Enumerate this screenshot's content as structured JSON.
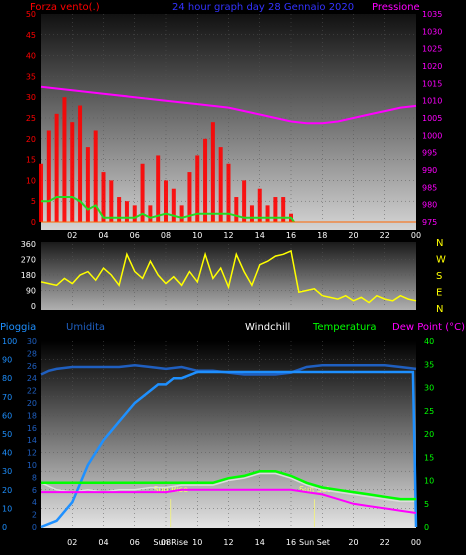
{
  "header": {
    "left": "Forza vento(.)",
    "center": "24 hour graph day 28 Gennaio 2020",
    "right": "Pressione"
  },
  "colors": {
    "wind_speed": "#ff0000",
    "wind_avg": "#22dd22",
    "pressure": "#ff00ff",
    "direction": "#ffff00",
    "humidity": "#1f5fc0",
    "rain": "#1e90ff",
    "temperature": "#00ff00",
    "dew_point": "#ff00ff",
    "windchill": "#dddddd",
    "rain_label": "#1e90ff",
    "humidity_label": "#1f5fc0"
  },
  "chart_data": [
    {
      "type": "line",
      "name": "wind-pressure",
      "x_ticks": [
        "02",
        "04",
        "06",
        "08",
        "10",
        "12",
        "14",
        "16",
        "18",
        "20",
        "22",
        "00"
      ],
      "wind_axis": {
        "ticks": [
          0,
          5,
          10,
          15,
          20,
          25,
          30,
          35,
          40,
          45,
          50
        ],
        "ylim": [
          0,
          50
        ]
      },
      "pressure_axis": {
        "ticks": [
          975,
          980,
          985,
          990,
          995,
          1000,
          1005,
          1010,
          1015,
          1020,
          1025,
          1030,
          1035
        ],
        "ylim": [
          975,
          1035
        ]
      },
      "series": [
        {
          "name": "Pressione",
          "x": [
            0,
            1,
            2,
            4,
            6,
            8,
            10,
            12,
            14,
            16,
            17,
            18,
            19,
            20,
            21,
            22,
            23,
            24
          ],
          "values": [
            1014,
            1013.5,
            1013,
            1012,
            1011,
            1010,
            1009,
            1008,
            1006,
            1004,
            1003.5,
            1003.5,
            1004,
            1005,
            1006,
            1007,
            1008,
            1008.5
          ]
        },
        {
          "name": "wind_gust",
          "x": [
            0,
            0.5,
            1,
            1.5,
            2,
            2.5,
            3,
            3.5,
            4,
            4.5,
            5,
            5.5,
            6,
            6.5,
            7,
            7.5,
            8,
            8.5,
            9,
            9.5,
            10,
            10.5,
            11,
            11.5,
            12,
            12.5,
            13,
            13.5,
            14,
            14.5,
            15,
            15.5,
            16,
            16.2
          ],
          "values": [
            14,
            22,
            26,
            30,
            24,
            28,
            18,
            22,
            12,
            10,
            6,
            5,
            4,
            14,
            4,
            16,
            10,
            8,
            4,
            12,
            16,
            20,
            24,
            18,
            14,
            6,
            10,
            4,
            8,
            4,
            6,
            6,
            2,
            0
          ]
        },
        {
          "name": "wind_avg",
          "x": [
            0,
            0.5,
            1,
            1.5,
            2,
            2.5,
            3,
            3.5,
            4,
            5,
            6,
            6.5,
            7,
            8,
            9,
            10,
            11,
            12,
            13,
            14,
            15,
            16,
            16.2
          ],
          "values": [
            5,
            5,
            6,
            6,
            6,
            5,
            3,
            4,
            1,
            1,
            1,
            2,
            1,
            2,
            1,
            2,
            2,
            2,
            1,
            1,
            1,
            1,
            0
          ]
        }
      ]
    },
    {
      "type": "scatter",
      "name": "wind-direction",
      "x_ticks": [
        "02",
        "04",
        "06",
        "08",
        "10",
        "12",
        "14",
        "16",
        "18",
        "20",
        "22",
        "00"
      ],
      "left_axis": {
        "ticks": [
          0,
          90,
          180,
          270,
          360
        ],
        "ylim": [
          0,
          360
        ]
      },
      "right_labels": [
        "N",
        "W",
        "S",
        "E",
        "N"
      ],
      "series": [
        {
          "name": "direction",
          "x": [
            0,
            0.5,
            1,
            1.5,
            2,
            2.5,
            3,
            3.5,
            4,
            4.5,
            5,
            5.5,
            6,
            6.5,
            7,
            7.5,
            8,
            8.5,
            9,
            9.5,
            10,
            10.5,
            11,
            11.5,
            12,
            12.5,
            13,
            13.5,
            14,
            14.5,
            15,
            15.5,
            16,
            16.5,
            17,
            17.5,
            18,
            18.5,
            19,
            19.5,
            20,
            20.5,
            21,
            21.5,
            22,
            22.5,
            23,
            23.5,
            24
          ],
          "values": [
            140,
            130,
            120,
            160,
            130,
            180,
            200,
            150,
            220,
            180,
            120,
            300,
            200,
            160,
            260,
            180,
            130,
            170,
            120,
            200,
            140,
            300,
            160,
            220,
            110,
            300,
            200,
            120,
            240,
            260,
            290,
            300,
            320,
            80,
            90,
            100,
            60,
            50,
            40,
            60,
            30,
            50,
            20,
            60,
            40,
            30,
            60,
            40,
            30
          ]
        }
      ]
    },
    {
      "type": "line",
      "name": "rain-humidity-temperature",
      "x_ticks": [
        "02",
        "04",
        "06",
        "08",
        "Sun Rise",
        "10",
        "12",
        "14",
        "16",
        "Sun Set",
        "20",
        "22",
        "00"
      ],
      "header": [
        "Pioggia",
        "Umidita",
        "Windchill",
        "Temperatura",
        "Dew Point (°C)"
      ],
      "rain_axis": {
        "ticks": [
          0,
          10,
          20,
          30,
          40,
          50,
          60,
          70,
          80,
          90,
          100
        ],
        "ylim": [
          0,
          100
        ]
      },
      "humidity_axis": {
        "ticks": [
          0,
          2,
          4,
          6,
          8,
          10,
          12,
          14,
          16,
          18,
          20,
          22,
          24,
          26,
          28,
          30
        ],
        "ylim": [
          0,
          30
        ]
      },
      "temp_axis": {
        "ticks": [
          0,
          5,
          10,
          15,
          20,
          25,
          30,
          35,
          40
        ],
        "ylim": [
          0,
          40
        ]
      },
      "annotations": [
        {
          "text": "Sun Rise",
          "x": 8.3
        },
        {
          "text": "Sun Set",
          "x": 17.5
        }
      ],
      "series": [
        {
          "name": "rain",
          "x": [
            0,
            1,
            2,
            3,
            4,
            5,
            6,
            7,
            7.5,
            8,
            8.5,
            9,
            10,
            11,
            12,
            13,
            14,
            15,
            16,
            17,
            18,
            19,
            20,
            21,
            22,
            23,
            23.8,
            24
          ],
          "values": [
            0,
            1,
            4,
            10,
            14,
            17,
            20,
            22,
            23,
            23,
            24,
            24,
            25,
            25,
            25,
            25,
            25,
            25,
            25,
            25,
            25,
            25,
            25,
            25,
            25,
            25,
            25,
            0
          ]
        },
        {
          "name": "humidity",
          "x": [
            0,
            0.5,
            1,
            2,
            3,
            4,
            5,
            6,
            7,
            8,
            9,
            10,
            11,
            12,
            13,
            14,
            15,
            16,
            17,
            18,
            19,
            20,
            21,
            22,
            23,
            24
          ],
          "values": [
            82,
            84,
            85,
            86,
            86,
            86,
            86,
            87,
            86,
            85,
            86,
            84,
            84,
            83,
            82,
            82,
            82,
            83,
            86,
            87,
            87,
            87,
            87,
            87,
            86,
            85
          ]
        },
        {
          "name": "Temperatura",
          "x": [
            0,
            1,
            2,
            3,
            4,
            5,
            6,
            7,
            8,
            9,
            10,
            11,
            12,
            13,
            14,
            15,
            16,
            17,
            18,
            19,
            20,
            21,
            22,
            23,
            24
          ],
          "values": [
            9.5,
            9.5,
            9.5,
            9.5,
            9.5,
            9.5,
            9.5,
            9.5,
            9.5,
            9.5,
            9.5,
            9.5,
            10.5,
            11,
            12,
            12,
            11,
            9.5,
            8.5,
            8,
            7.5,
            7,
            6.5,
            6,
            6
          ]
        },
        {
          "name": "Dew Point",
          "x": [
            0,
            1,
            2,
            3,
            4,
            5,
            6,
            7,
            8,
            9,
            10,
            11,
            12,
            13,
            14,
            15,
            16,
            17,
            18,
            19,
            20,
            21,
            22,
            23,
            24
          ],
          "values": [
            7.5,
            7.5,
            7.5,
            7.5,
            7.5,
            7.5,
            7.5,
            7.5,
            7.5,
            8,
            8,
            8,
            8,
            8,
            8,
            8,
            8,
            7.5,
            7,
            6,
            5,
            4.5,
            4,
            3.5,
            3
          ]
        },
        {
          "name": "Windchill",
          "x": [
            0,
            1,
            2,
            3,
            4,
            5,
            6,
            7,
            8,
            9,
            10,
            11,
            12,
            13,
            14,
            15,
            16,
            17,
            18,
            19,
            20,
            21,
            22,
            23,
            24
          ],
          "values": [
            9.5,
            8,
            7.5,
            8,
            7.5,
            8,
            8,
            8.5,
            8.5,
            9,
            9,
            9,
            10,
            10.5,
            11.5,
            11.5,
            10.5,
            9,
            8,
            7.5,
            7,
            6.5,
            6,
            5.5,
            5.5
          ]
        }
      ]
    }
  ]
}
